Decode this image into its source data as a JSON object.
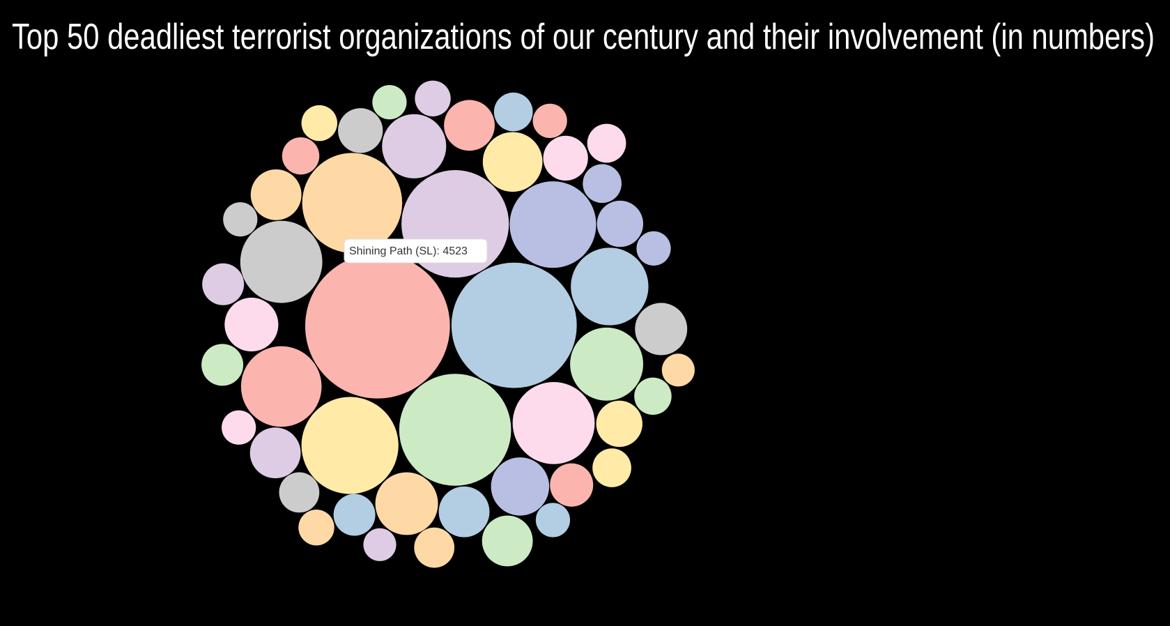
{
  "chart_data": {
    "type": "bubble",
    "title": "Top 50 deadliest terrorist organizations of our century and their involvement (in numbers)",
    "values": [
      4523,
      3392,
      2704,
      2492,
      2158,
      2031,
      1617,
      1454,
      1454,
      1402,
      1300,
      1154,
      889,
      848,
      769,
      731,
      589,
      556,
      556,
      556,
      556,
      623,
      556,
      462,
      462,
      433,
      433,
      404,
      350,
      377,
      377,
      350,
      377,
      325,
      325,
      325,
      325,
      300,
      277,
      277,
      277,
      300,
      254,
      254,
      254,
      254,
      254,
      233,
      254,
      233
    ],
    "colors": [
      "#fbb4ae",
      "#b3cde3",
      "#ccebc5",
      "#decbe4",
      "#fed9a6",
      "#ffeaa7",
      "#b8bfe3",
      "#fddaec",
      "#cccccc",
      "#fbb4ae",
      "#b3cde3",
      "#ccebc5",
      "#decbe4",
      "#fed9a6",
      "#ffeaa7",
      "#b8bfe3",
      "#cccccc",
      "#b3cde3",
      "#decbe4",
      "#fbb4ae",
      "#fed9a6",
      "#fddaec",
      "#ccebc5",
      "#ffeaa7",
      "#b8bfe3",
      "#cccccc",
      "#fddaec",
      "#fbb4ae",
      "#fed9a6",
      "#decbe4",
      "#ccebc5",
      "#cccccc",
      "#b3cde3",
      "#ffeaa7",
      "#fddaec",
      "#b8bfe3",
      "#b3cde3",
      "#ccebc5",
      "#decbe4",
      "#ffeaa7",
      "#fed9a6",
      "#fbb4ae",
      "#b8bfe3",
      "#fbb4ae",
      "#ccebc5",
      "#fddaec",
      "#cccccc",
      "#fed9a6",
      "#b3cde3",
      "#decbe4"
    ],
    "tooltip": {
      "label": "Shining Path (SL):"
    }
  }
}
